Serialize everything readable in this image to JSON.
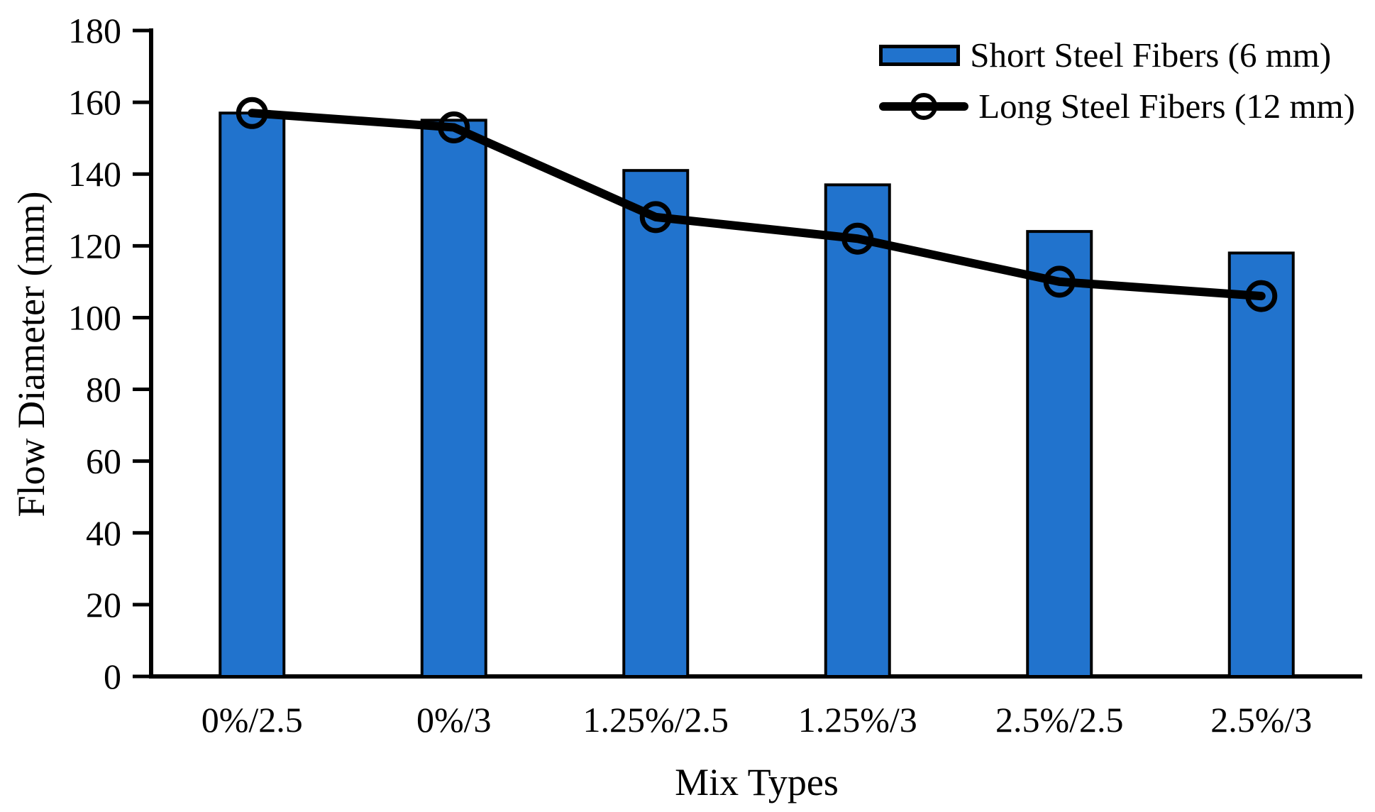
{
  "chart_data": {
    "type": "bar",
    "title": "",
    "xlabel": "Mix Types",
    "ylabel": "Flow Diameter (mm)",
    "ylim": [
      0,
      180
    ],
    "ytick_step": 20,
    "yticks": [
      0,
      20,
      40,
      60,
      80,
      100,
      120,
      140,
      160,
      180
    ],
    "grid": false,
    "legend_position": "top-right",
    "categories": [
      "0%/2.5",
      "0%/3",
      "1.25%/2.5",
      "1.25%/3",
      "2.5%/2.5",
      "2.5%/3"
    ],
    "series": [
      {
        "name": "Short Steel Fibers (6 mm)",
        "type": "bar",
        "color": "#2173CD",
        "border_color": "#000000",
        "values": [
          157,
          155,
          141,
          137,
          124,
          118
        ]
      },
      {
        "name": "Long Steel Fibers (12 mm)",
        "type": "line",
        "color": "#000000",
        "marker": "open-circle",
        "values": [
          157,
          153,
          128,
          122,
          110,
          106
        ]
      }
    ]
  }
}
